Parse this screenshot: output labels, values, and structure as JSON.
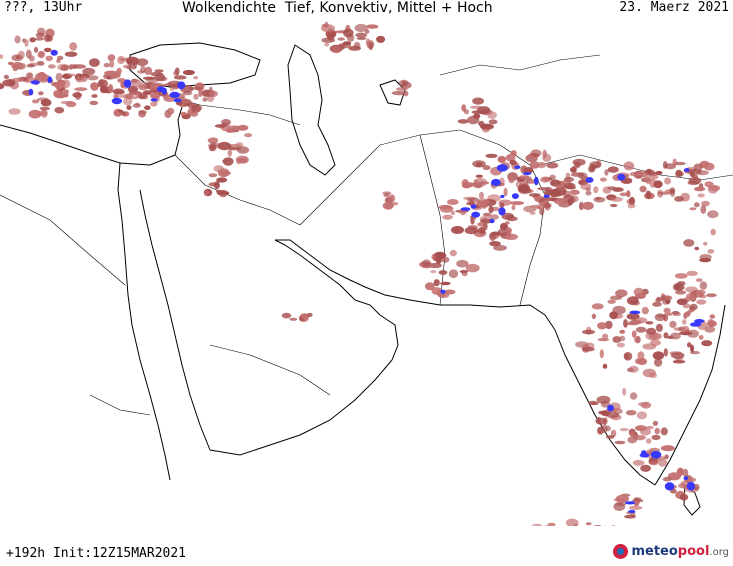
{
  "header": {
    "left": "???, 13Uhr",
    "title": "Wolkendichte  Tief, Konvektiv, Mittel + Hoch",
    "date": "23. Maerz 2021"
  },
  "footer": {
    "run": "+192h Init:12Z15MAR2021"
  },
  "logo": {
    "part1": "meteo",
    "part2": "pool",
    "part3": ".org"
  },
  "colors": {
    "background": "#ffffff",
    "coast": "#000000",
    "cloud_light": "#c47070",
    "cloud_medium": "#a85050",
    "cloud_dense": "#3838ff"
  }
}
